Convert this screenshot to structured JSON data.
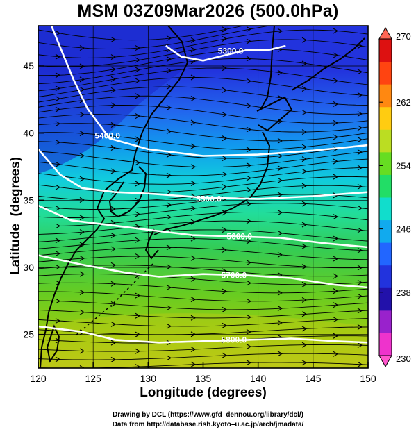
{
  "title": "MSM 03Z09Mar2026 (500.0hPa)",
  "x_axis": {
    "label": "Longitude (degrees)",
    "range": [
      120,
      150
    ],
    "ticks": [
      120,
      125,
      130,
      135,
      140,
      145,
      150
    ],
    "tick_labels": [
      "120",
      "125",
      "130",
      "135",
      "140",
      "145",
      "150"
    ]
  },
  "y_axis": {
    "label": "Latitude  (degrees)",
    "range": [
      22.5,
      48
    ],
    "ticks": [
      25,
      30,
      35,
      40,
      45
    ],
    "tick_labels": [
      "25",
      "30",
      "35",
      "40",
      "45"
    ]
  },
  "colorbar": {
    "min": 230,
    "max": 270,
    "ticks": [
      230,
      238,
      246,
      254,
      262,
      270
    ],
    "tick_labels": [
      "230",
      "238",
      "246",
      "254",
      "262",
      "270"
    ],
    "colors": [
      "#ee33cc",
      "#9922cc",
      "#2211aa",
      "#2233dd",
      "#2266ff",
      "#11aaee",
      "#11ddcc",
      "#22dd66",
      "#66dd22",
      "#bbdd22",
      "#ffcc11",
      "#ff8811",
      "#ff4411",
      "#dd1111"
    ]
  },
  "contours": [
    {
      "label": "5300.0",
      "label_at": [
        137.5,
        46.1
      ],
      "points": [
        [
          131.6,
          46.5
        ],
        [
          133,
          45.7
        ],
        [
          135,
          45.4
        ],
        [
          137,
          45.8
        ],
        [
          139,
          46.2
        ],
        [
          141,
          46.2
        ],
        [
          142.5,
          46.5
        ]
      ]
    },
    {
      "label": "5400.0",
      "label_at": [
        126.3,
        39.8
      ],
      "points": [
        [
          121.2,
          48
        ],
        [
          122.2,
          46
        ],
        [
          123.2,
          44
        ],
        [
          124.5,
          41.8
        ],
        [
          126.5,
          39.6
        ],
        [
          130,
          38.8
        ],
        [
          135,
          38.3
        ],
        [
          140,
          38.4
        ],
        [
          145,
          38.7
        ],
        [
          150,
          39.1
        ]
      ]
    },
    {
      "label": "5500.0",
      "label_at": [
        135.5,
        35.1
      ],
      "points": [
        [
          120,
          38.8
        ],
        [
          122,
          36.9
        ],
        [
          124,
          35.9
        ],
        [
          127,
          35.6
        ],
        [
          130,
          35.5
        ],
        [
          135,
          35.2
        ],
        [
          140,
          35.1
        ],
        [
          145,
          35.3
        ],
        [
          150,
          35.6
        ]
      ]
    },
    {
      "label": "5600.0",
      "label_at": [
        138.3,
        32.3
      ],
      "points": [
        [
          120,
          34.6
        ],
        [
          123,
          33.5
        ],
        [
          126,
          33.2
        ],
        [
          130,
          32.8
        ],
        [
          134,
          32.4
        ],
        [
          138,
          32.3
        ],
        [
          142,
          32.2
        ],
        [
          146,
          31.8
        ],
        [
          150,
          31.5
        ]
      ]
    },
    {
      "label": "5700.0",
      "label_at": [
        137.8,
        29.4
      ],
      "points": [
        [
          120,
          30.9
        ],
        [
          124,
          30.2
        ],
        [
          128,
          29.6
        ],
        [
          131,
          29.3
        ],
        [
          135,
          29.5
        ],
        [
          139,
          29.4
        ],
        [
          143,
          29.2
        ],
        [
          147,
          28.7
        ],
        [
          150,
          28.5
        ]
      ]
    },
    {
      "label": "5800.0",
      "label_at": [
        137.8,
        24.6
      ],
      "points": [
        [
          120,
          25.6
        ],
        [
          124,
          25.2
        ],
        [
          127,
          24.6
        ],
        [
          131,
          24.4
        ],
        [
          135,
          24.5
        ],
        [
          139,
          24.6
        ],
        [
          143,
          24.7
        ],
        [
          147,
          24.5
        ],
        [
          150,
          24.4
        ]
      ]
    }
  ],
  "credit_line1": "Drawing by DCL (https://www.gfd–dennou.org/library/dcl/)",
  "credit_line2": "Data from http://database.rish.kyoto–u.ac.jp/arch/jmadata/"
}
